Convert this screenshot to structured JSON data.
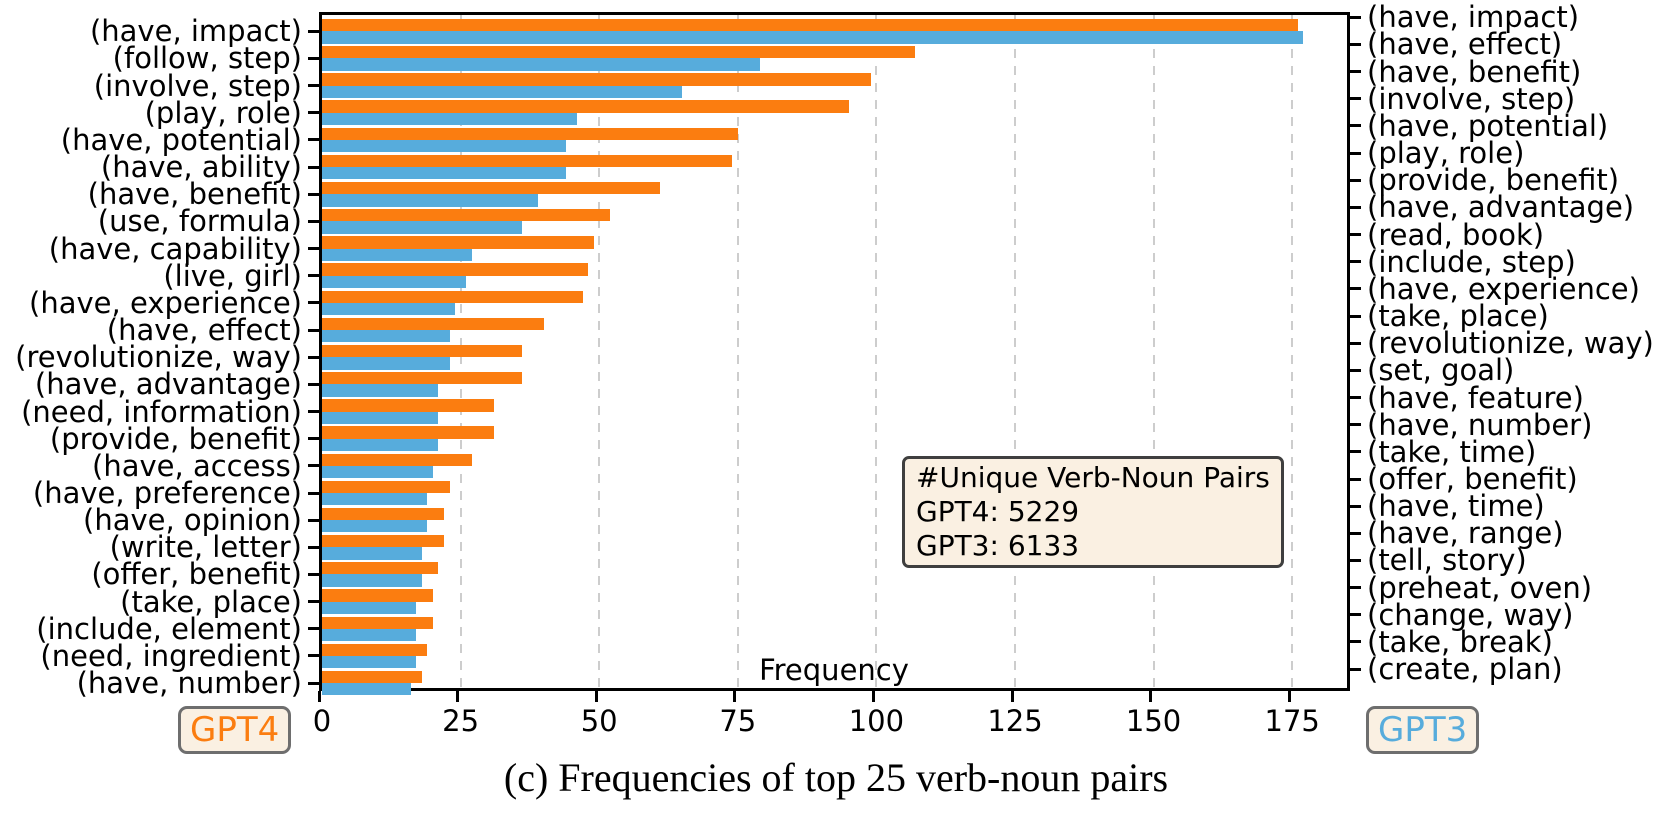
{
  "figure": {
    "caption": "(c) Frequencies of top 25 verb-noun pairs",
    "legend_left": "GPT4",
    "legend_right": "GPT3",
    "colors": {
      "gpt4_orange": "#fb7d10",
      "gpt3_blue": "#57acdc",
      "box_background": "#faf0e2",
      "grid_gray": "#cdcdcd"
    }
  },
  "chart_data": {
    "type": "bar",
    "orientation": "horizontal",
    "xlabel": "Frequency",
    "x_ticks": [
      0,
      25,
      50,
      75,
      100,
      125,
      150,
      175
    ],
    "xlim": [
      0,
      186
    ],
    "grid": true,
    "legend_position": "below-left-and-right",
    "annotation": {
      "lines": [
        "#Unique Verb-Noun Pairs",
        "GPT4: 5229",
        "GPT3: 6133"
      ]
    },
    "series": [
      {
        "name": "GPT4",
        "color": "#fb7d10",
        "labels_side": "left",
        "labels": [
          "(have, impact)",
          "(follow, step)",
          "(involve, step)",
          "(play, role)",
          "(have, potential)",
          "(have, ability)",
          "(have, benefit)",
          "(use, formula)",
          "(have, capability)",
          "(live, girl)",
          "(have, experience)",
          "(have, effect)",
          "(revolutionize, way)",
          "(have, advantage)",
          "(need, information)",
          "(provide, benefit)",
          "(have, access)",
          "(have, preference)",
          "(have, opinion)",
          "(write, letter)",
          "(offer, benefit)",
          "(take, place)",
          "(include, element)",
          "(need, ingredient)",
          "(have, number)"
        ],
        "values": [
          176,
          107,
          99,
          95,
          75,
          74,
          61,
          52,
          49,
          48,
          47,
          40,
          36,
          36,
          31,
          31,
          27,
          23,
          22,
          22,
          21,
          20,
          20,
          19,
          18
        ]
      },
      {
        "name": "GPT3",
        "color": "#57acdc",
        "labels_side": "right",
        "labels": [
          "(have, impact)",
          "(have, effect)",
          "(have, benefit)",
          "(involve, step)",
          "(have, potential)",
          "(play, role)",
          "(provide, benefit)",
          "(have, advantage)",
          "(read, book)",
          "(include, step)",
          "(have, experience)",
          "(take, place)",
          "(revolutionize, way)",
          "(set, goal)",
          "(have, feature)",
          "(have, number)",
          "(take, time)",
          "(offer, benefit)",
          "(have, time)",
          "(have, range)",
          "(tell, story)",
          "(preheat, oven)",
          "(change, way)",
          "(take, break)",
          "(create, plan)"
        ],
        "values": [
          177,
          79,
          65,
          46,
          44,
          44,
          39,
          36,
          27,
          26,
          24,
          23,
          23,
          21,
          21,
          21,
          20,
          19,
          19,
          18,
          18,
          17,
          17,
          17,
          16
        ]
      }
    ]
  }
}
